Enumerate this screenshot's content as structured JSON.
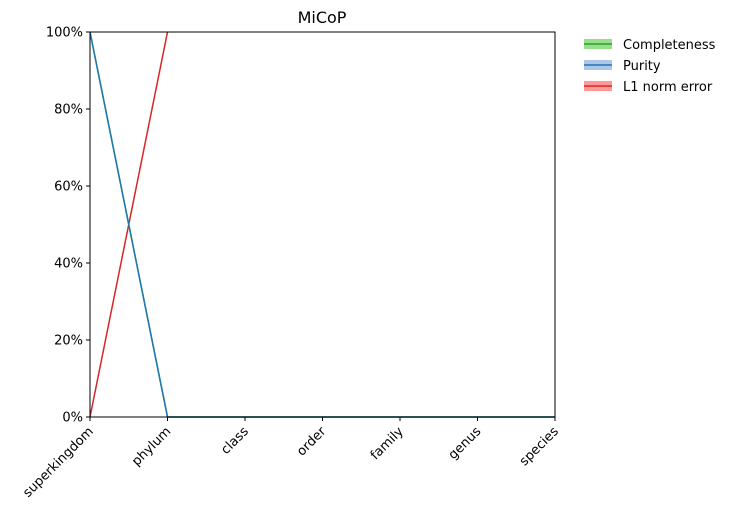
{
  "chart_data": {
    "type": "line",
    "title": "MiCoP",
    "xlabel": "",
    "ylabel": "",
    "categories": [
      "superkingdom",
      "phylum",
      "class",
      "order",
      "family",
      "genus",
      "species"
    ],
    "ylim": [
      0,
      1
    ],
    "yticks": [
      0,
      0.2,
      0.4,
      0.6,
      0.8,
      1.0
    ],
    "ytick_labels": [
      "0%",
      "20%",
      "40%",
      "60%",
      "80%",
      "100%"
    ],
    "grid": false,
    "legend_position": "outside-top-right",
    "series": [
      {
        "name": "Completeness",
        "color": "#2ca02c",
        "band_color": "#98df8a",
        "values": [
          1.0,
          0,
          0,
          0,
          0,
          0,
          0
        ]
      },
      {
        "name": "Purity",
        "color": "#1f77b4",
        "band_color": "#aec7e8",
        "values": [
          1.0,
          0,
          0,
          0,
          0,
          0,
          0
        ]
      },
      {
        "name": "L1 norm error",
        "color": "#d62728",
        "band_color": "#ff9896",
        "values": [
          0,
          1.0,
          null,
          null,
          null,
          null,
          null
        ]
      }
    ]
  }
}
